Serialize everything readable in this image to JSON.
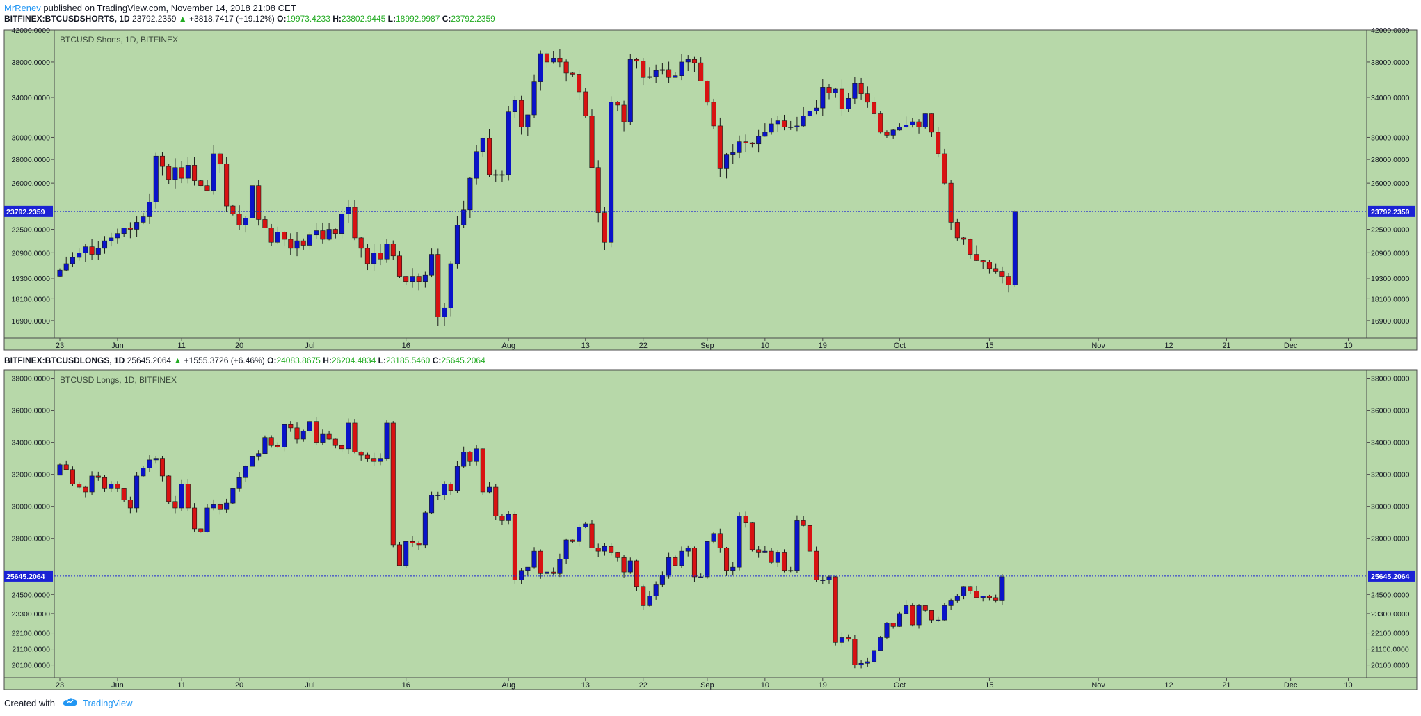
{
  "header": {
    "author": "MrRenev",
    "published_text": "published on TradingView.com, November 14, 2018 21:08 CET"
  },
  "footer": {
    "created_with": "Created with",
    "brand": "TradingView",
    "logo_icon": "tradingview-cloud-icon"
  },
  "colors": {
    "background": "#b7d8a9",
    "up": "#0a13c9",
    "down": "#d81212",
    "wick": "#1a1a1a",
    "last_price_line": "#1b22d4",
    "last_price_label_bg": "#1b22d4",
    "change_up": "#22ab22",
    "brand_blue": "#2196f3"
  },
  "x_axis_labels": [
    "23",
    "Jun",
    "11",
    "20",
    "Jul",
    "16",
    "Aug",
    "13",
    "22",
    "Sep",
    "10",
    "19",
    "Oct",
    "15",
    "Nov",
    "12",
    "21",
    "Dec",
    "10"
  ],
  "panes": [
    {
      "symbol": "BITFINEX:BTCUSDSHORTS, 1D",
      "last": "23792.2359",
      "change": "+3818.7417 (+19.12%)",
      "change_arrow": "up-triangle-icon",
      "o_label": "O:",
      "o": "19973.4233",
      "h_label": "H:",
      "h": "23802.9445",
      "l_label": "L:",
      "l": "18992.9987",
      "c_label": "C:",
      "c": "23792.2359",
      "watermark": "BTCUSD Shorts, 1D, BITFINEX",
      "price_label": "23792.2359"
    },
    {
      "symbol": "BITFINEX:BTCUSDLONGS, 1D",
      "last": "25645.2064",
      "change": "+1555.3726 (+6.46%)",
      "change_arrow": "up-triangle-icon",
      "o_label": "O:",
      "o": "24083.8675",
      "h_label": "H:",
      "h": "26204.4834",
      "l_label": "L:",
      "l": "23185.5460",
      "c_label": "C:",
      "c": "25645.2064",
      "watermark": "BTCUSD Longs, 1D, BITFINEX",
      "price_label": "25645.2064"
    }
  ],
  "chart_data": [
    {
      "type": "candlestick",
      "title": "BTCUSD Shorts, 1D, BITFINEX",
      "scale": "log",
      "ylim": [
        16000,
        42000
      ],
      "y_ticks": [
        "42000.0000",
        "38000.0000",
        "34000.0000",
        "30000.0000",
        "28000.0000",
        "26000.0000",
        "22500.0000",
        "20900.0000",
        "19300.0000",
        "18100.0000",
        "16900.0000"
      ],
      "last_price": 23792.2359,
      "first_date": "2018-05-23",
      "close": [
        19800,
        20200,
        20600,
        20900,
        21300,
        20800,
        21200,
        21700,
        21900,
        22200,
        22600,
        22500,
        23000,
        23400,
        24500,
        28300,
        27400,
        26300,
        27300,
        26400,
        27500,
        26200,
        25800,
        25400,
        28500,
        27600,
        24200,
        23600,
        22800,
        23300,
        25800,
        23200,
        22600,
        21600,
        22300,
        21800,
        21200,
        21700,
        21400,
        22100,
        22400,
        21800,
        22500,
        22200,
        23600,
        24100,
        21900,
        21200,
        20200,
        20900,
        20500,
        21500,
        20700,
        19400,
        19100,
        19400,
        19100,
        19500,
        20800,
        17100,
        17600,
        20200,
        22800,
        23900,
        26400,
        28700,
        29900,
        26700,
        26700,
        26700,
        32500,
        33700,
        31000,
        32200,
        35700,
        39000,
        38000,
        38400,
        38000,
        36700,
        36500,
        34600,
        32100,
        27300,
        23700,
        21600,
        33500,
        33200,
        31500,
        38300,
        38100,
        36200,
        36300,
        37000,
        37100,
        36200,
        36400,
        38000,
        38300,
        37900,
        35800,
        33500,
        31100,
        27200,
        28400,
        28600,
        29600,
        29500,
        29400,
        30100,
        30500,
        31300,
        31600,
        31000,
        31000,
        31100,
        32100,
        32600,
        32900,
        35100,
        34500,
        34900,
        32800,
        33900,
        35500,
        34400,
        33500,
        32300,
        30500,
        30200,
        30700,
        31000,
        31200,
        31500,
        31000,
        32300,
        30500,
        28500,
        26000,
        23000,
        21900,
        21800,
        20800,
        20400,
        20300,
        19900,
        19700,
        19400,
        18900,
        23800
      ]
    },
    {
      "type": "candlestick",
      "title": "BTCUSD Longs, 1D, BITFINEX",
      "scale": "linear",
      "ylim": [
        19300,
        38500
      ],
      "y_ticks": [
        "38000.0000",
        "36000.0000",
        "34000.0000",
        "32000.0000",
        "30000.0000",
        "28000.0000",
        "24500.0000",
        "23300.0000",
        "22100.0000",
        "21100.0000",
        "20100.0000"
      ],
      "last_price": 25645.2064,
      "first_date": "2018-05-23",
      "close": [
        32600,
        32300,
        31400,
        31200,
        30900,
        31900,
        31800,
        31100,
        31400,
        31100,
        30400,
        29900,
        31900,
        32400,
        32900,
        33000,
        31900,
        30300,
        29900,
        31400,
        29900,
        28600,
        28400,
        29900,
        30100,
        29800,
        30200,
        31100,
        31800,
        32500,
        33100,
        33300,
        34300,
        33800,
        33700,
        35100,
        34900,
        34200,
        34700,
        35300,
        34000,
        34500,
        34200,
        33800,
        33600,
        35200,
        33400,
        33200,
        33000,
        32800,
        33000,
        35200,
        27600,
        26300,
        27800,
        27700,
        27600,
        29600,
        30700,
        30700,
        31400,
        31000,
        32500,
        33400,
        32800,
        33600,
        30900,
        31200,
        29400,
        29100,
        29500,
        25400,
        26000,
        26200,
        27200,
        25800,
        25900,
        25800,
        26700,
        27900,
        27800,
        28700,
        28900,
        27400,
        27200,
        27500,
        27100,
        26800,
        25900,
        26600,
        25000,
        23800,
        24400,
        25100,
        25700,
        26800,
        26300,
        27200,
        27400,
        25600,
        25600,
        27800,
        28300,
        27400,
        26000,
        26200,
        29400,
        29000,
        27300,
        27100,
        27200,
        26500,
        27100,
        26000,
        26000,
        29100,
        28800,
        27200,
        25400,
        25400,
        25600,
        21500,
        21800,
        21700,
        20100,
        20200,
        20300,
        21000,
        21800,
        22700,
        22500,
        23300,
        23800,
        22600,
        23800,
        23500,
        22900,
        22900,
        23800,
        24100,
        24400,
        25000,
        24700,
        24300,
        24400,
        24300,
        24100,
        25600
      ]
    }
  ]
}
